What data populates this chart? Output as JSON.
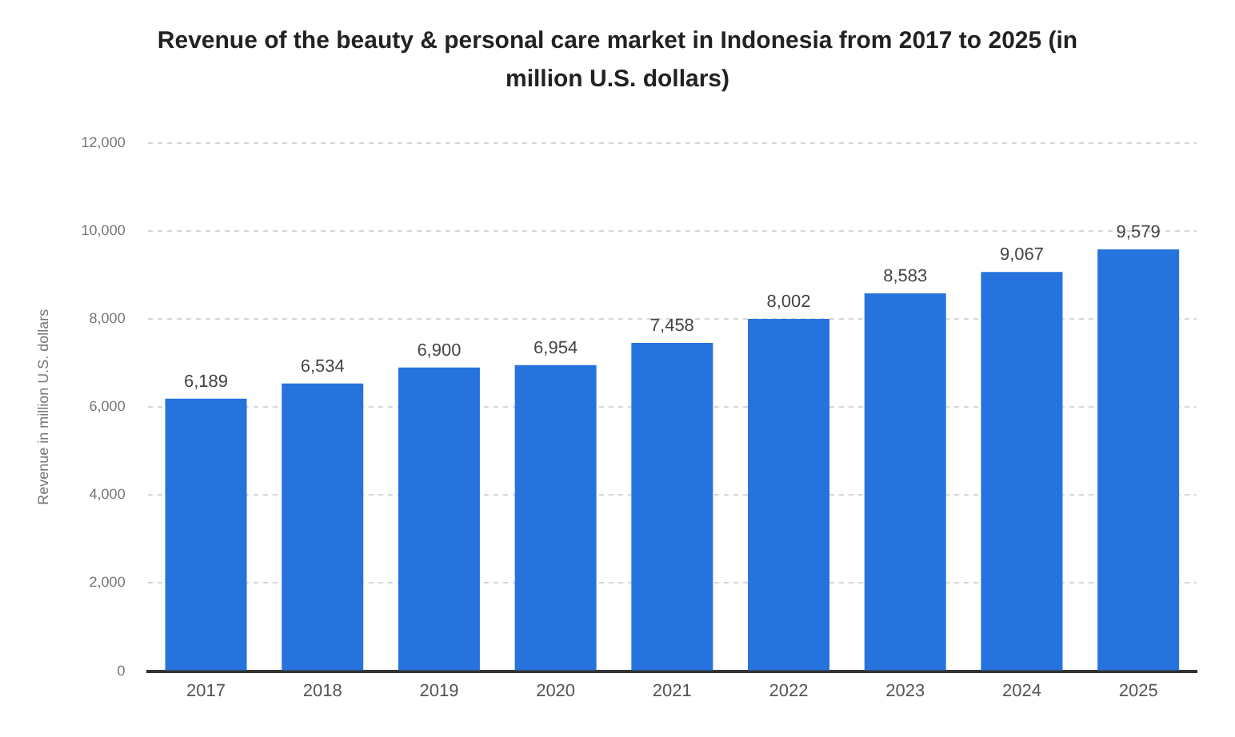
{
  "chart_data": {
    "type": "bar",
    "title": "Revenue of the beauty & personal care market in Indonesia from 2017 to 2025 (in million U.S. dollars)",
    "ylabel": "Revenue in million U.S. dollars",
    "categories": [
      "2017",
      "2018",
      "2019",
      "2020",
      "2021",
      "2022",
      "2023",
      "2024",
      "2025"
    ],
    "values": [
      6189,
      6534,
      6900,
      6954,
      7458,
      8002,
      8583,
      9067,
      9579
    ],
    "value_labels": [
      "6,189",
      "6,534",
      "6,900",
      "6,954",
      "7,458",
      "8,002",
      "8,583",
      "9,067",
      "9,579"
    ],
    "color": "#2673dd",
    "ylim": [
      0,
      12000
    ],
    "yticks": [
      {
        "value": 0,
        "label": "0"
      },
      {
        "value": 2000,
        "label": "2,000"
      },
      {
        "value": 4000,
        "label": "4,000"
      },
      {
        "value": 6000,
        "label": "6,000"
      },
      {
        "value": 8000,
        "label": "8,000"
      },
      {
        "value": 10000,
        "label": "10,000"
      },
      {
        "value": 12000,
        "label": "12,000"
      }
    ],
    "grid": "y"
  }
}
